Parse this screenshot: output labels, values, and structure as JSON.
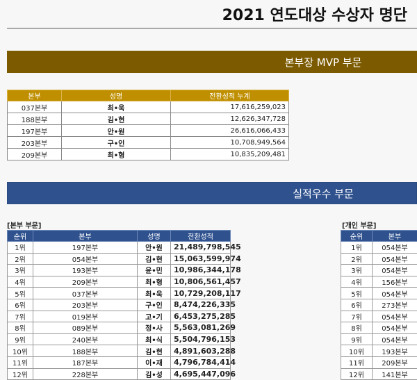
{
  "title": "2021 연도대상 수상자 명단",
  "colors": {
    "mvp_banner": "#7c5b00",
    "mvp_header": "#bf8f00",
    "perf_banner": "#2f528f",
    "perf_header": "#2f528f"
  },
  "mvp": {
    "banner": "본부장 MVP 부문",
    "headers": [
      "본부",
      "성명",
      "전환성적 누계"
    ],
    "rows": [
      [
        "037본부",
        "최•욱",
        "17,616,259,023"
      ],
      [
        "188본부",
        "김•현",
        "12,626,347,728"
      ],
      [
        "197본부",
        "안•원",
        "26,616,066,433"
      ],
      [
        "203본부",
        "구•인",
        "10,708,949,564"
      ],
      [
        "209본부",
        "최•형",
        "10,835,209,481"
      ]
    ]
  },
  "performance": {
    "banner": "실적우수 부문",
    "branch": {
      "label": "[본부 부문]",
      "headers": [
        "순위",
        "본부",
        "성명",
        "전환성적"
      ],
      "rows": [
        [
          "1위",
          "197본부",
          "안•원",
          "21,489,798,545"
        ],
        [
          "2위",
          "054본부",
          "김•현",
          "15,063,599,974"
        ],
        [
          "3위",
          "193본부",
          "윤•민",
          "10,986,344,178"
        ],
        [
          "4위",
          "209본부",
          "최•형",
          "10,806,561,457"
        ],
        [
          "5위",
          "037본부",
          "최•욱",
          "10,729,208,117"
        ],
        [
          "6위",
          "203본부",
          "구•인",
          "8,474,226,335"
        ],
        [
          "7위",
          "019본부",
          "고•기",
          "6,453,275,285"
        ],
        [
          "8위",
          "089본부",
          "정•사",
          "5,563,081,269"
        ],
        [
          "9위",
          "240본부",
          "최•식",
          "5,504,796,153"
        ],
        [
          "10위",
          "188본부",
          "김•현",
          "4,891,603,288"
        ],
        [
          "11위",
          "187본부",
          "이•재",
          "4,796,784,414"
        ],
        [
          "12위",
          "228본부",
          "김•성",
          "4,695,447,096"
        ]
      ]
    },
    "individual": {
      "label": "[개인 부문]",
      "headers": [
        "순위",
        "본부"
      ],
      "rows": [
        [
          "1위",
          "054본부"
        ],
        [
          "2위",
          "054본부"
        ],
        [
          "3위",
          "054본부"
        ],
        [
          "4위",
          "156본부"
        ],
        [
          "5위",
          "054본부"
        ],
        [
          "6위",
          "273본부"
        ],
        [
          "7위",
          "054본부"
        ],
        [
          "8위",
          "054본부"
        ],
        [
          "9위",
          "054본부"
        ],
        [
          "10위",
          "193본부"
        ],
        [
          "11위",
          "209본부"
        ],
        [
          "12위",
          "141본부"
        ]
      ]
    }
  }
}
